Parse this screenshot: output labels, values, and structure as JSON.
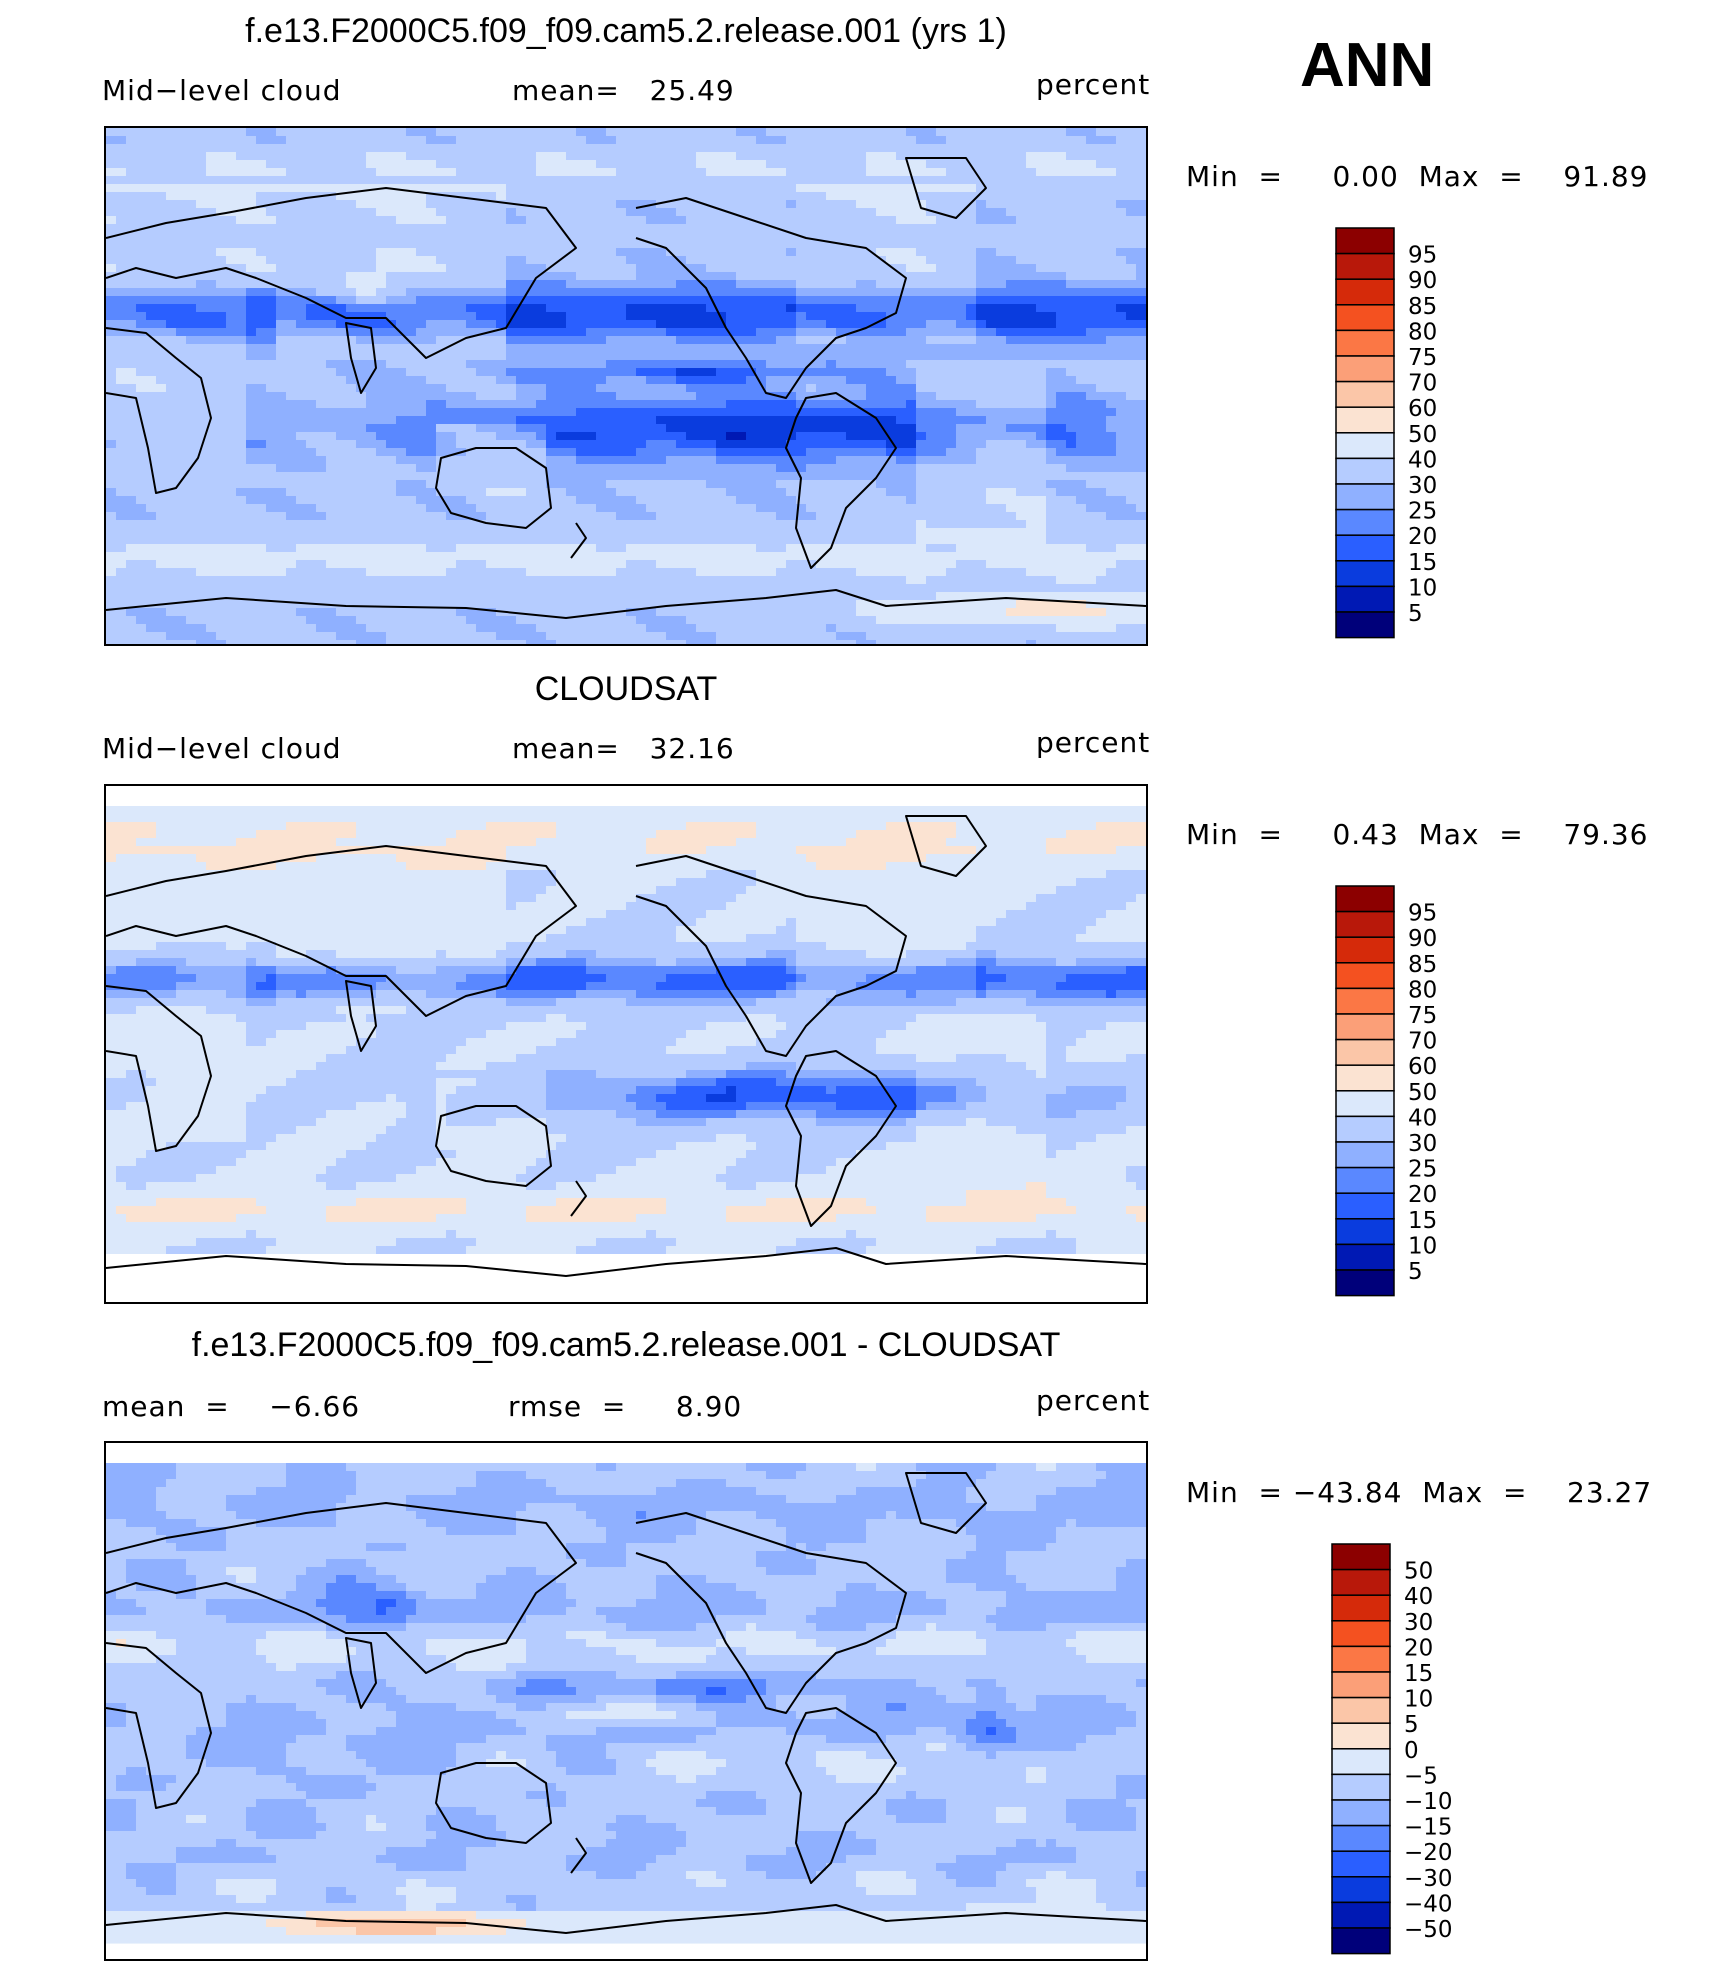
{
  "season": "ANN",
  "colors": {
    "seq": [
      "#00007a",
      "#0019b4",
      "#0a3cde",
      "#2a5fff",
      "#5a88ff",
      "#8fb0ff",
      "#b5ccff",
      "#dbe8fb",
      "#fbe3d2",
      "#fbc6a8",
      "#fb9f78",
      "#fb7745",
      "#f45120",
      "#d52a0a",
      "#b8180a",
      "#8c0000"
    ],
    "diff": [
      "#00007a",
      "#0019b4",
      "#0a3cde",
      "#2a5fff",
      "#5a88ff",
      "#8fb0ff",
      "#b5ccff",
      "#dbe8fb",
      "#fbe3d2",
      "#fbc6a8",
      "#fb9f78",
      "#fb7745",
      "#f45120",
      "#d52a0a",
      "#b8180a",
      "#8c0000"
    ]
  },
  "chart_data": [
    {
      "type": "heatmap",
      "title": "f.e13.F2000C5.f09_f09.cam5.2.release.001 (yrs 1)",
      "left_label": "Mid−level cloud",
      "center_label": "mean=   25.49",
      "units": "percent",
      "mean": 25.49,
      "min_max": "Min  =     0.00  Max  =    91.89",
      "min": 0.0,
      "max": 91.89,
      "colorbar_levels": [
        "95",
        "90",
        "85",
        "80",
        "75",
        "70",
        "60",
        "50",
        "40",
        "30",
        "25",
        "20",
        "15",
        "10",
        "5"
      ]
    },
    {
      "type": "heatmap",
      "title": "CLOUDSAT",
      "left_label": "Mid−level cloud",
      "center_label": "mean=   32.16",
      "units": "percent",
      "mean": 32.16,
      "min_max": "Min  =     0.43  Max  =    79.36",
      "min": 0.43,
      "max": 79.36,
      "colorbar_levels": [
        "95",
        "90",
        "85",
        "80",
        "75",
        "70",
        "60",
        "50",
        "40",
        "30",
        "25",
        "20",
        "15",
        "10",
        "5"
      ]
    },
    {
      "type": "heatmap",
      "title": "f.e13.F2000C5.f09_f09.cam5.2.release.001 - CLOUDSAT",
      "left_label": "mean  =    −6.66",
      "center_label": "rmse  =     8.90",
      "units": "percent",
      "mean": -6.66,
      "rmse": 8.9,
      "min_max": "Min  = −43.84  Max  =    23.27",
      "min": -43.84,
      "max": 23.27,
      "colorbar_levels": [
        "50",
        "40",
        "30",
        "20",
        "15",
        "10",
        "5",
        "0",
        "−5",
        "−10",
        "−15",
        "−20",
        "−30",
        "−40",
        "−50"
      ]
    }
  ]
}
